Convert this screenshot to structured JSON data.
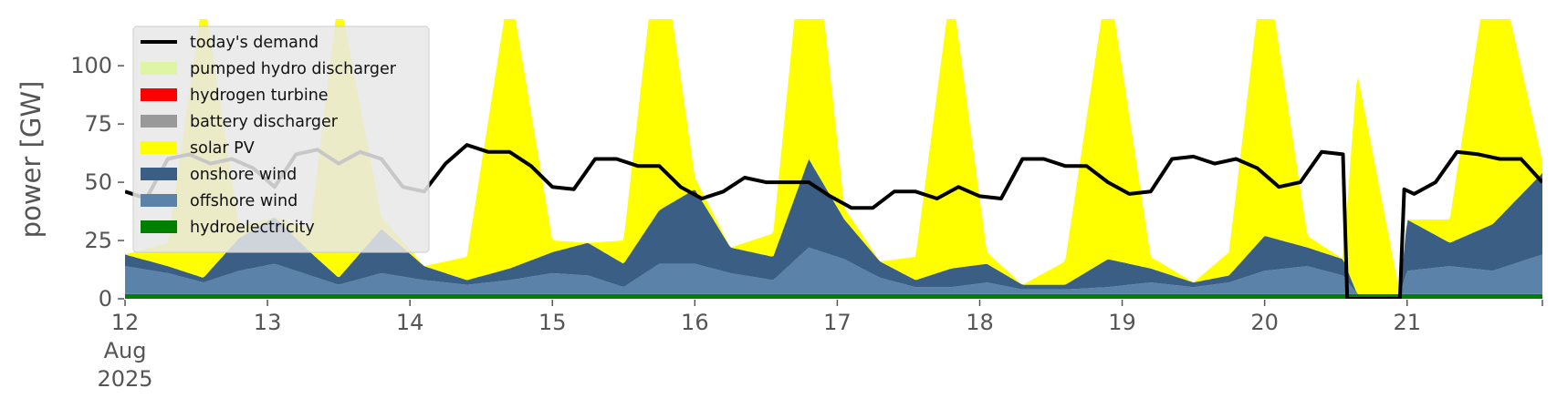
{
  "chart_data": {
    "type": "area",
    "title": "",
    "xlabel": "",
    "ylabel": "power [GW]",
    "x_start": "2025-08-12",
    "x_end": "2025-08-21 22:00",
    "xlim_days": [
      12,
      21.95
    ],
    "ylim": [
      0,
      120
    ],
    "yticks": [
      0,
      25,
      50,
      75,
      100
    ],
    "xticks": [
      {
        "day": 12,
        "label": [
          "12",
          "Aug",
          "2025"
        ]
      },
      {
        "day": 13,
        "label": [
          "13"
        ]
      },
      {
        "day": 14,
        "label": [
          "14"
        ]
      },
      {
        "day": 15,
        "label": [
          "15"
        ]
      },
      {
        "day": 16,
        "label": [
          "16"
        ]
      },
      {
        "day": 17,
        "label": [
          "17"
        ]
      },
      {
        "day": 18,
        "label": [
          "18"
        ]
      },
      {
        "day": 19,
        "label": [
          "19"
        ]
      },
      {
        "day": 20,
        "label": [
          "20"
        ]
      },
      {
        "day": 21,
        "label": [
          "21"
        ]
      }
    ],
    "legend_position": "top-left",
    "series": [
      {
        "name": "hydroelectricity",
        "color": "#008000",
        "x": [
          12,
          21.95
        ],
        "values": [
          2,
          2
        ]
      },
      {
        "name": "offshore wind",
        "color": "#5b82a8",
        "x": [
          12,
          12.3,
          12.55,
          12.8,
          13.05,
          13.3,
          13.5,
          13.8,
          14.1,
          14.4,
          14.7,
          15,
          15.25,
          15.5,
          15.75,
          16,
          16.25,
          16.55,
          16.8,
          17.05,
          17.3,
          17.55,
          17.8,
          18.05,
          18.3,
          18.6,
          18.9,
          19.2,
          19.5,
          19.75,
          20,
          20.3,
          20.55,
          20.65,
          20.95,
          21,
          21.3,
          21.6,
          21.95
        ],
        "values": [
          12,
          9,
          5,
          10,
          13,
          8,
          4,
          9,
          6,
          4,
          6,
          9,
          8,
          3,
          13,
          13,
          9,
          6,
          20,
          15,
          7,
          3,
          3,
          5,
          2,
          2,
          3,
          5,
          3,
          5,
          10,
          12,
          8,
          0,
          0,
          10,
          12,
          10,
          17
        ]
      },
      {
        "name": "onshore wind",
        "color": "#3b5f84",
        "x": [
          12,
          12.3,
          12.55,
          12.8,
          13.05,
          13.3,
          13.5,
          13.8,
          14.1,
          14.4,
          14.7,
          15,
          15.25,
          15.5,
          15.75,
          16,
          16.25,
          16.55,
          16.8,
          17.05,
          17.3,
          17.55,
          17.8,
          18.05,
          18.3,
          18.6,
          18.9,
          19.2,
          19.5,
          19.75,
          20,
          20.3,
          20.55,
          20.65,
          20.95,
          21,
          21.3,
          21.6,
          21.95
        ],
        "values": [
          5,
          3,
          2,
          14,
          20,
          10,
          3,
          19,
          6,
          2,
          5,
          9,
          14,
          10,
          23,
          32,
          11,
          10,
          38,
          17,
          7,
          3,
          8,
          8,
          2,
          2,
          12,
          6,
          2,
          3,
          15,
          8,
          7,
          0,
          0,
          22,
          10,
          20,
          35
        ]
      },
      {
        "name": "solar PV",
        "color": "#ffff00",
        "x": [
          12,
          12.3,
          12.55,
          12.8,
          13.05,
          13.3,
          13.5,
          13.8,
          14.1,
          14.4,
          14.7,
          15,
          15.25,
          15.5,
          15.75,
          16,
          16.25,
          16.55,
          16.8,
          17.05,
          17.3,
          17.55,
          17.8,
          18.05,
          18.3,
          18.6,
          18.9,
          19.2,
          19.5,
          19.75,
          20,
          20.3,
          20.55,
          20.65,
          20.95,
          21,
          21.3,
          21.6,
          21.95
        ],
        "values": [
          0,
          10,
          122,
          5,
          0,
          10,
          122,
          5,
          0,
          10,
          122,
          5,
          0,
          10,
          122,
          5,
          0,
          10,
          122,
          5,
          0,
          10,
          122,
          5,
          0,
          10,
          122,
          5,
          0,
          10,
          122,
          5,
          0,
          95,
          0,
          0,
          10,
          122,
          5
        ]
      },
      {
        "name": "battery discharger",
        "color": "#999999",
        "x": [
          12,
          21.95
        ],
        "values": [
          0,
          0
        ]
      },
      {
        "name": "hydrogen turbine",
        "color": "#ff0000",
        "x": [
          12,
          21.95
        ],
        "values": [
          0,
          0
        ]
      },
      {
        "name": "pumped hydro discharger",
        "color": "#ddf5a5",
        "x": [
          12,
          21.95
        ],
        "values": [
          0,
          0
        ]
      }
    ],
    "demand": {
      "name": "today's demand",
      "color": "#000000",
      "x": [
        12,
        12.15,
        12.3,
        12.45,
        12.6,
        12.75,
        12.9,
        13.05,
        13.2,
        13.35,
        13.5,
        13.65,
        13.8,
        13.95,
        14.1,
        14.25,
        14.4,
        14.55,
        14.7,
        14.85,
        15,
        15.15,
        15.3,
        15.45,
        15.6,
        15.75,
        15.9,
        16.05,
        16.2,
        16.35,
        16.5,
        16.65,
        16.8,
        16.95,
        17.1,
        17.25,
        17.4,
        17.55,
        17.7,
        17.85,
        18,
        18.15,
        18.3,
        18.45,
        18.6,
        18.75,
        18.9,
        19.05,
        19.2,
        19.35,
        19.5,
        19.65,
        19.8,
        19.95,
        20.1,
        20.25,
        20.4,
        20.55,
        20.58,
        20.61,
        20.95,
        20.98,
        21.05,
        21.2,
        21.35,
        21.5,
        21.65,
        21.8,
        21.95
      ],
      "values": [
        46,
        43,
        60,
        62,
        58,
        60,
        56,
        48,
        62,
        64,
        58,
        63,
        60,
        48,
        46,
        58,
        66,
        63,
        63,
        57,
        48,
        47,
        60,
        60,
        57,
        57,
        48,
        43,
        46,
        52,
        50,
        50,
        50,
        44,
        39,
        39,
        46,
        46,
        43,
        48,
        44,
        43,
        60,
        60,
        57,
        57,
        50,
        45,
        46,
        60,
        61,
        58,
        60,
        56,
        48,
        50,
        63,
        62,
        0,
        0,
        0,
        47,
        45,
        50,
        63,
        62,
        60,
        60,
        50
      ]
    }
  },
  "legend": [
    {
      "label": "today's demand",
      "kind": "line",
      "color": "#000000"
    },
    {
      "label": "pumped hydro discharger",
      "kind": "patch",
      "color": "#ddf5a5"
    },
    {
      "label": "hydrogen turbine",
      "kind": "patch",
      "color": "#ff0000"
    },
    {
      "label": "battery discharger",
      "kind": "patch",
      "color": "#999999"
    },
    {
      "label": "solar PV",
      "kind": "patch",
      "color": "#ffff00"
    },
    {
      "label": "onshore wind",
      "kind": "patch",
      "color": "#3b5f84"
    },
    {
      "label": "offshore wind",
      "kind": "patch",
      "color": "#5b82a8"
    },
    {
      "label": "hydroelectricity",
      "kind": "patch",
      "color": "#008000"
    }
  ]
}
